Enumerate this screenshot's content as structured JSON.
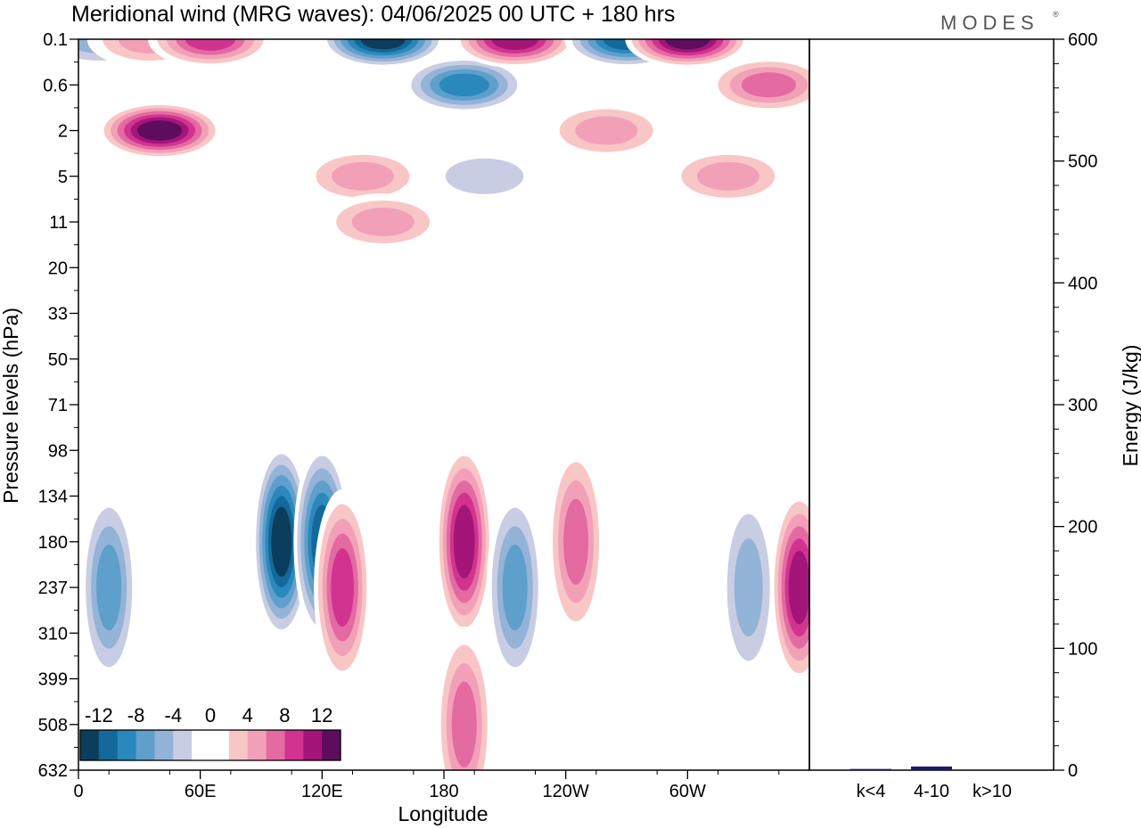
{
  "title": "Meridional wind (MRG waves):  04/06/2025  00 UTC  + 180 hrs",
  "logo_text": "MODES",
  "logo_mark": "®",
  "chart_data": [
    {
      "type": "heatmap",
      "title": "Meridional wind (MRG waves):  04/06/2025  00 UTC  + 180 hrs",
      "xlabel": "Longitude",
      "ylabel": "Pressure levels (hPa)",
      "x_ticks": [
        "0",
        "60E",
        "120E",
        "180",
        "120W",
        "60W"
      ],
      "y_ticks": [
        "0.1",
        "0.6",
        "2",
        "5",
        "11",
        "20",
        "33",
        "50",
        "71",
        "98",
        "134",
        "180",
        "237",
        "310",
        "399",
        "508",
        "632"
      ],
      "colorbar": {
        "labels": [
          "-12",
          "-8",
          "-4",
          "0",
          "4",
          "8",
          "12"
        ],
        "colors": [
          "#0b3d5c",
          "#136a9a",
          "#2b88bd",
          "#5e9fcb",
          "#93b3d7",
          "#c9cde3",
          "#ffffff",
          "#ffffff",
          "#f9c6c6",
          "#f2a0b8",
          "#e46aa2",
          "#d1338f",
          "#a4157a",
          "#5e0d5e"
        ]
      },
      "cells": [
        {
          "lon": 10,
          "lev": "0.1",
          "value": -6
        },
        {
          "lon": 35,
          "lev": "0.1",
          "value": 6
        },
        {
          "lon": 65,
          "lev": "0.1",
          "value": 10
        },
        {
          "lon": 150,
          "lev": "0.1",
          "value": -14
        },
        {
          "lon": 190,
          "lev": "0.6",
          "value": -10
        },
        {
          "lon": 215,
          "lev": "0.1",
          "value": 12
        },
        {
          "lon": 270,
          "lev": "0.1",
          "value": -12
        },
        {
          "lon": 300,
          "lev": "0.1",
          "value": 14
        },
        {
          "lon": 340,
          "lev": "0.6",
          "value": 8
        },
        {
          "lon": 40,
          "lev": "2",
          "value": 14
        },
        {
          "lon": 140,
          "lev": "5",
          "value": 6
        },
        {
          "lon": 200,
          "lev": "5",
          "value": -4
        },
        {
          "lon": 260,
          "lev": "2",
          "value": 6
        },
        {
          "lon": 320,
          "lev": "5",
          "value": 6
        },
        {
          "lon": 150,
          "lev": "11",
          "value": 5
        },
        {
          "lon": 100,
          "lev": "180",
          "value": -14
        },
        {
          "lon": 120,
          "lev": "180",
          "value": -12
        },
        {
          "lon": 15,
          "lev": "237",
          "value": -8
        },
        {
          "lon": 130,
          "lev": "237",
          "value": 10
        },
        {
          "lon": 190,
          "lev": "180",
          "value": 12
        },
        {
          "lon": 215,
          "lev": "237",
          "value": -8
        },
        {
          "lon": 245,
          "lev": "180",
          "value": 8
        },
        {
          "lon": 330,
          "lev": "237",
          "value": -6
        },
        {
          "lon": 355,
          "lev": "237",
          "value": 12
        },
        {
          "lon": 190,
          "lev": "508",
          "value": 8
        }
      ]
    },
    {
      "type": "bar",
      "ylabel": "Energy (J/kg)",
      "categories": [
        "k<4",
        "4-10",
        "k>10"
      ],
      "values": [
        1,
        3,
        0
      ],
      "ylim": [
        0,
        600
      ],
      "y_ticks": [
        "0",
        "100",
        "200",
        "300",
        "400",
        "500",
        "600"
      ],
      "bar_color": "#1a1a6e"
    }
  ]
}
